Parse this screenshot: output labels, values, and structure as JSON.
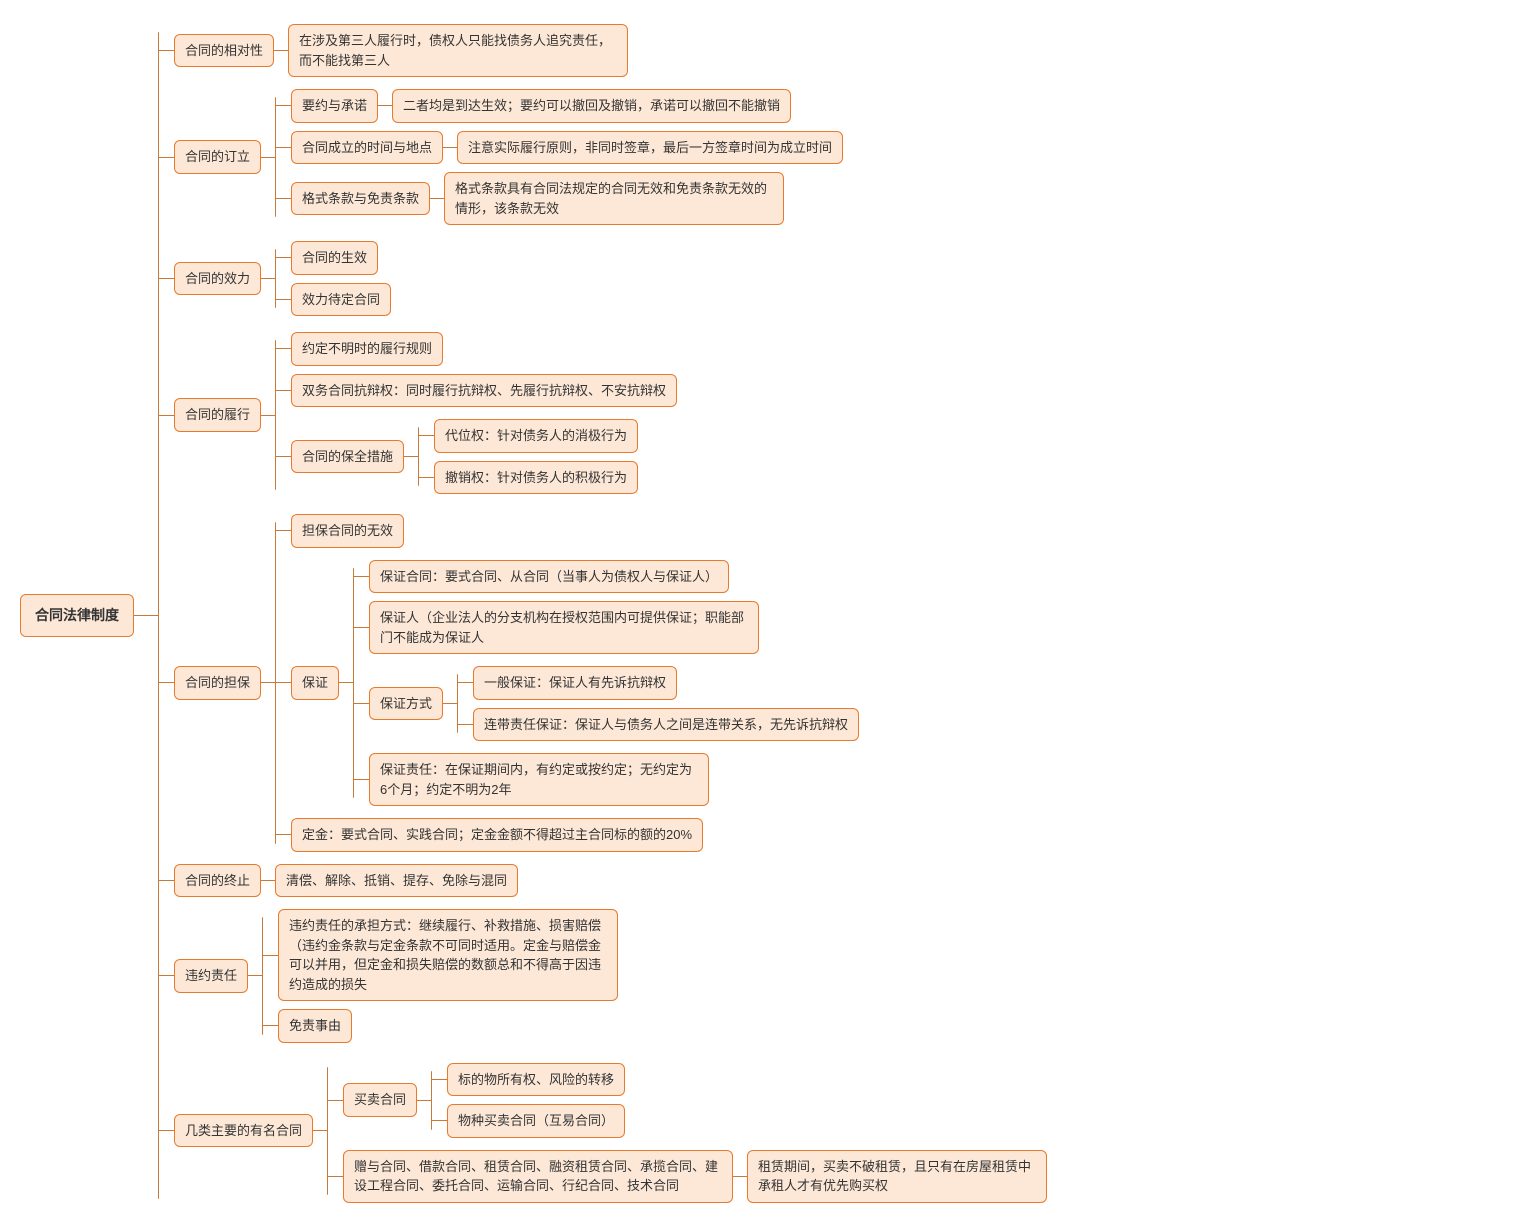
{
  "colors": {
    "node_border": "#e87a2e",
    "node_bg": "#fde8d7",
    "connector": "#c77a3a",
    "text": "#333333",
    "page_bg": "#ffffff"
  },
  "root": "合同法律制度",
  "n1": {
    "t": "合同的相对性",
    "c1": "在涉及第三人履行时，债权人只能找债务人追究责任，而不能找第三人"
  },
  "n2": {
    "t": "合同的订立",
    "a": {
      "t": "要约与承诺",
      "c": "二者均是到达生效；要约可以撤回及撤销，承诺可以撤回不能撤销"
    },
    "b": {
      "t": "合同成立的时间与地点",
      "c": "注意实际履行原则，非同时签章，最后一方签章时间为成立时间"
    },
    "c": {
      "t": "格式条款与免责条款",
      "cc": "格式条款具有合同法规定的合同无效和免责条款无效的情形，该条款无效"
    }
  },
  "n3": {
    "t": "合同的效力",
    "a": "合同的生效",
    "b": "效力待定合同"
  },
  "n4": {
    "t": "合同的履行",
    "a": "约定不明时的履行规则",
    "b": "双务合同抗辩权：同时履行抗辩权、先履行抗辩权、不安抗辩权",
    "c": {
      "t": "合同的保全措施",
      "c1": "代位权：针对债务人的消极行为",
      "c2": "撤销权：针对债务人的积极行为"
    }
  },
  "n5": {
    "t": "合同的担保",
    "a": "担保合同的无效",
    "b": {
      "t": "保证",
      "b1": "保证合同：要式合同、从合同（当事人为债权人与保证人）",
      "b2": "保证人（企业法人的分支机构在授权范围内可提供保证；职能部门不能成为保证人",
      "b3": {
        "t": "保证方式",
        "c1": "一般保证：保证人有先诉抗辩权",
        "c2": "连带责任保证：保证人与债务人之间是连带关系，无先诉抗辩权"
      },
      "b4": "保证责任：在保证期间内，有约定或按约定；无约定为6个月；约定不明为2年"
    },
    "c": "定金：要式合同、实践合同；定金金额不得超过主合同标的额的20%"
  },
  "n6": {
    "t": "合同的终止",
    "c": "清偿、解除、抵销、提存、免除与混同"
  },
  "n7": {
    "t": "违约责任",
    "a": "违约责任的承担方式：继续履行、补救措施、损害赔偿（违约金条款与定金条款不可同时适用。定金与赔偿金可以并用，但定金和损失赔偿的数额总和不得高于因违约造成的损失",
    "b": "免责事由"
  },
  "n8": {
    "t": "几类主要的有名合同",
    "a": {
      "t": "买卖合同",
      "c1": "标的物所有权、风险的转移",
      "c2": "物种买卖合同（互易合同）"
    },
    "b": {
      "t": "赠与合同、借款合同、租赁合同、融资租赁合同、承揽合同、建设工程合同、委托合同、运输合同、行纪合同、技术合同",
      "c": "租赁期间，买卖不破租赁，且只有在房屋租赁中承租人才有优先购买权"
    }
  }
}
